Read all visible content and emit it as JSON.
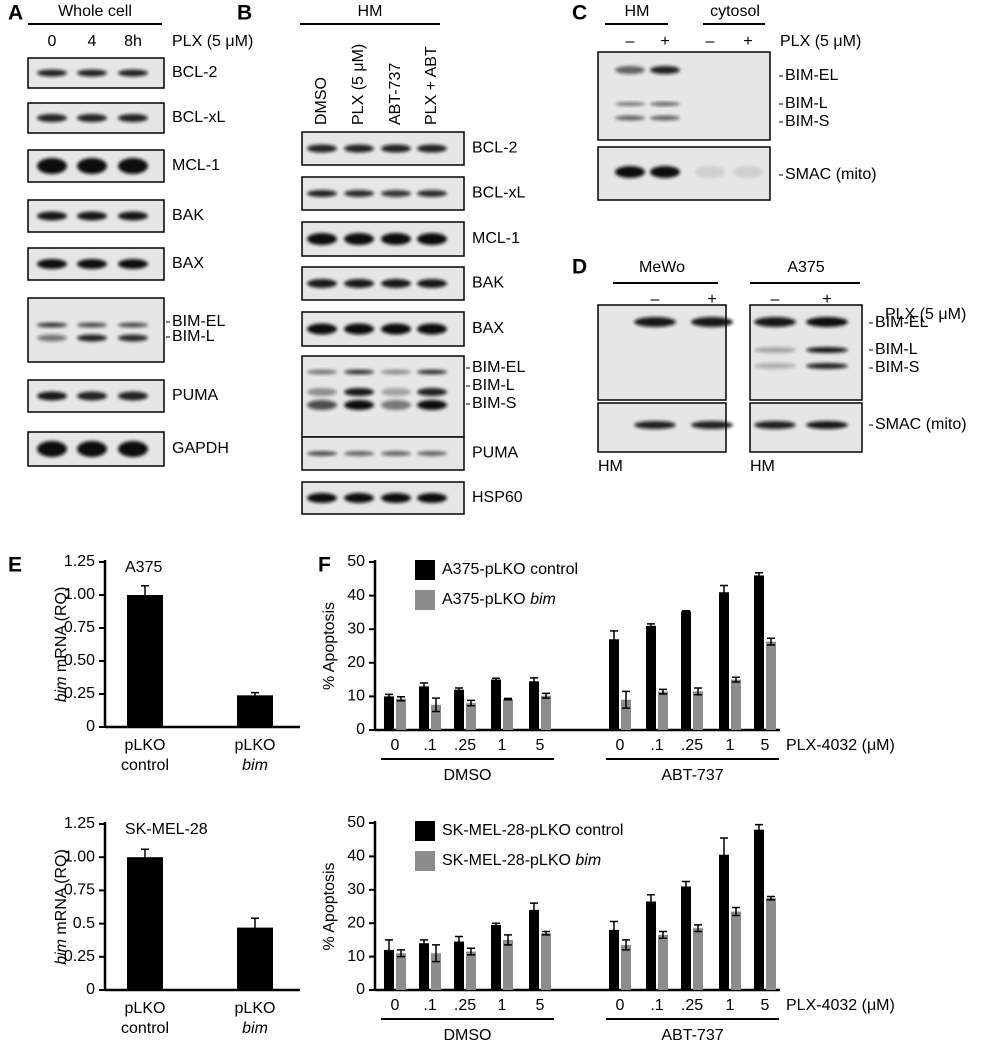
{
  "italic_terms": [
    "bim"
  ],
  "panel_letters": [
    "A",
    "B",
    "C",
    "D",
    "E",
    "F"
  ],
  "blots": [
    {
      "group_labels": [
        "Whole cell"
      ],
      "lanes": [
        "0",
        "4",
        "8h"
      ],
      "treatment": "PLX (5 μM)",
      "rows": [
        [
          "BCL-2"
        ],
        [
          "BCL-xL"
        ],
        [
          "MCL-1"
        ],
        [
          "BAK"
        ],
        [
          "BAX"
        ],
        [
          "BIM-EL",
          "BIM-L"
        ],
        [
          "PUMA"
        ],
        [
          "GAPDH"
        ]
      ]
    },
    {
      "group_labels": [
        "HM"
      ],
      "lanes": [
        "DMSO",
        "PLX (5 μM)",
        "ABT-737",
        "PLX + ABT"
      ],
      "rows": [
        [
          "BCL-2"
        ],
        [
          "BCL-xL"
        ],
        [
          "MCL-1"
        ],
        [
          "BAK"
        ],
        [
          "BAX"
        ],
        [
          "BIM-EL",
          "BIM-L",
          "BIM-S"
        ],
        [
          "PUMA"
        ],
        [
          "HSP60"
        ]
      ]
    },
    {
      "group_labels": [
        "HM",
        "cytosol"
      ],
      "lanes": [
        "–",
        "+",
        "–",
        "+"
      ],
      "treatment": "PLX (5 μM)",
      "rows": [
        [
          "BIM-EL",
          "BIM-L",
          "BIM-S"
        ],
        [
          "SMAC (mito)"
        ]
      ]
    },
    {
      "group_labels": [
        "MeWo",
        "A375"
      ],
      "lanes": [
        "–",
        "+",
        "–",
        "+"
      ],
      "treatment": "PLX (5 μM)",
      "rows": [
        [
          "BIM-EL",
          "BIM-L",
          "BIM-S"
        ],
        [
          "SMAC (mito)"
        ]
      ],
      "footers": [
        "HM",
        "HM"
      ]
    }
  ],
  "chart_data": [
    {
      "type": "bar",
      "title": "A375",
      "ylabel": "bim mRNA (RQ)",
      "categories": [
        [
          "pLKO",
          "control"
        ],
        [
          "pLKO",
          "bim"
        ]
      ],
      "series": [
        {
          "color": "#000000",
          "values": [
            1.0,
            0.24
          ],
          "errors": [
            0.07,
            0.02
          ]
        }
      ],
      "ylim": [
        0,
        1.25
      ],
      "yticks": [
        0,
        0.25,
        {
          "value": 0.5,
          "label": "0.50"
        },
        0.75,
        {
          "value": 1,
          "label": "1.00"
        },
        1.25
      ]
    },
    {
      "type": "bar",
      "title": "SK-MEL-28",
      "ylabel": "bim mRNA (RQ)",
      "categories": [
        [
          "pLKO",
          "control"
        ],
        [
          "pLKO",
          "bim"
        ]
      ],
      "series": [
        {
          "color": "#000000",
          "values": [
            1.0,
            0.47
          ],
          "errors": [
            0.06,
            0.07
          ]
        }
      ],
      "ylim": [
        0,
        1.25
      ],
      "yticks": [
        0,
        0.25,
        0.5,
        0.75,
        {
          "value": 1,
          "label": "1.00"
        },
        1.25
      ]
    },
    {
      "type": "grouped_bar",
      "ylabel": "% Apoptosis",
      "x_label": "PLX-4032 (μM)",
      "groups": [
        {
          "label": "DMSO",
          "categories": [
            "0",
            ".1",
            ".25",
            "1",
            "5"
          ]
        },
        {
          "label": "ABT-737",
          "categories": [
            "0",
            ".1",
            ".25",
            "1",
            "5"
          ]
        }
      ],
      "series": [
        {
          "name": "A375-pLKO control",
          "color": "#000000",
          "values": [
            10,
            13,
            12,
            15,
            14.5,
            27,
            31,
            35.3,
            41,
            46
          ],
          "errors": [
            0.6,
            1,
            0.5,
            0.4,
            1,
            2.5,
            0.6,
            0.2,
            2,
            0.8
          ]
        },
        {
          "name": "A375-pLKO bim",
          "color": "#8c8c8c",
          "values": [
            9.3,
            7.5,
            8,
            9.2,
            10.2,
            9,
            11.4,
            11.5,
            15,
            26.3
          ],
          "errors": [
            0.6,
            2,
            0.8,
            0.2,
            0.7,
            2.5,
            0.7,
            1,
            0.7,
            1
          ]
        }
      ],
      "ylim": [
        0,
        50
      ],
      "yticks": [
        0,
        10,
        20,
        30,
        40,
        50
      ]
    },
    {
      "type": "grouped_bar",
      "ylabel": "% Apoptosis",
      "x_label": "PLX-4032 (μM)",
      "groups": [
        {
          "label": "DMSO",
          "categories": [
            "0",
            ".1",
            ".25",
            "1",
            "5"
          ]
        },
        {
          "label": "ABT-737",
          "categories": [
            "0",
            ".1",
            ".25",
            "1",
            "5"
          ]
        }
      ],
      "series": [
        {
          "name": "SK-MEL-28-pLKO control",
          "color": "#000000",
          "values": [
            12,
            14,
            14.5,
            19.5,
            24,
            18,
            26.5,
            31,
            40.5,
            48
          ],
          "errors": [
            3,
            1,
            1.5,
            0.5,
            2,
            2.5,
            2,
            1.5,
            5,
            1.5
          ]
        },
        {
          "name": "SK-MEL-28-pLKO bim",
          "color": "#8c8c8c",
          "values": [
            11,
            11,
            11.5,
            15,
            17,
            13.5,
            16.5,
            18.5,
            23.5,
            27.5
          ],
          "errors": [
            1,
            2.5,
            1,
            1.5,
            0.5,
            1.5,
            1,
            1,
            1.2,
            0.5
          ]
        }
      ],
      "ylim": [
        0,
        50
      ],
      "yticks": [
        0,
        10,
        20,
        30,
        40,
        50
      ]
    }
  ]
}
